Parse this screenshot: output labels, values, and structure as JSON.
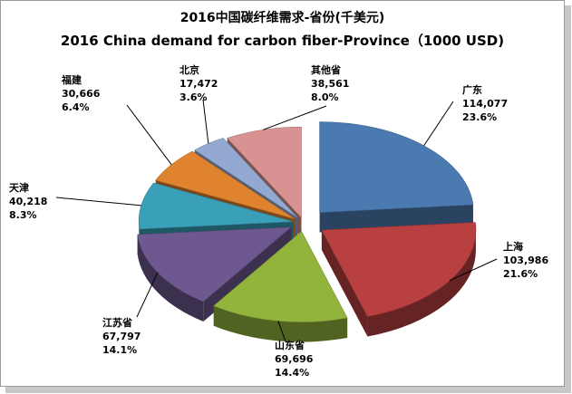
{
  "chart_data": {
    "type": "pie",
    "title": "2016中国碳纤维需求-省份(千美元)",
    "subtitle": "2016 China demand for carbon fiber-Province（1000 USD)",
    "slices": [
      {
        "name": "广东",
        "value_label": "114,077",
        "value": 114077,
        "percent_label": "23.6%",
        "color": "#4a7ab0"
      },
      {
        "name": "上海",
        "value_label": "103,986",
        "value": 103986,
        "percent_label": "21.6%",
        "color": "#b84040"
      },
      {
        "name": "山东省",
        "value_label": "69,696",
        "value": 69696,
        "percent_label": "14.4%",
        "color": "#93b43c"
      },
      {
        "name": "江苏省",
        "value_label": "67,797",
        "value": 67797,
        "percent_label": "14.1%",
        "color": "#6d5890"
      },
      {
        "name": "天津",
        "value_label": "40,218",
        "value": 40218,
        "percent_label": "8.3%",
        "color": "#3a9fb8"
      },
      {
        "name": "福建",
        "value_label": "30,666",
        "value": 30666,
        "percent_label": "6.4%",
        "color": "#e0832e"
      },
      {
        "name": "北京",
        "value_label": "17,472",
        "value": 17472,
        "percent_label": "3.6%",
        "color": "#93a9d2"
      },
      {
        "name": "其他省",
        "value_label": "38,561",
        "value": 38561,
        "percent_label": "8.0%",
        "color": "#d89292"
      }
    ]
  }
}
